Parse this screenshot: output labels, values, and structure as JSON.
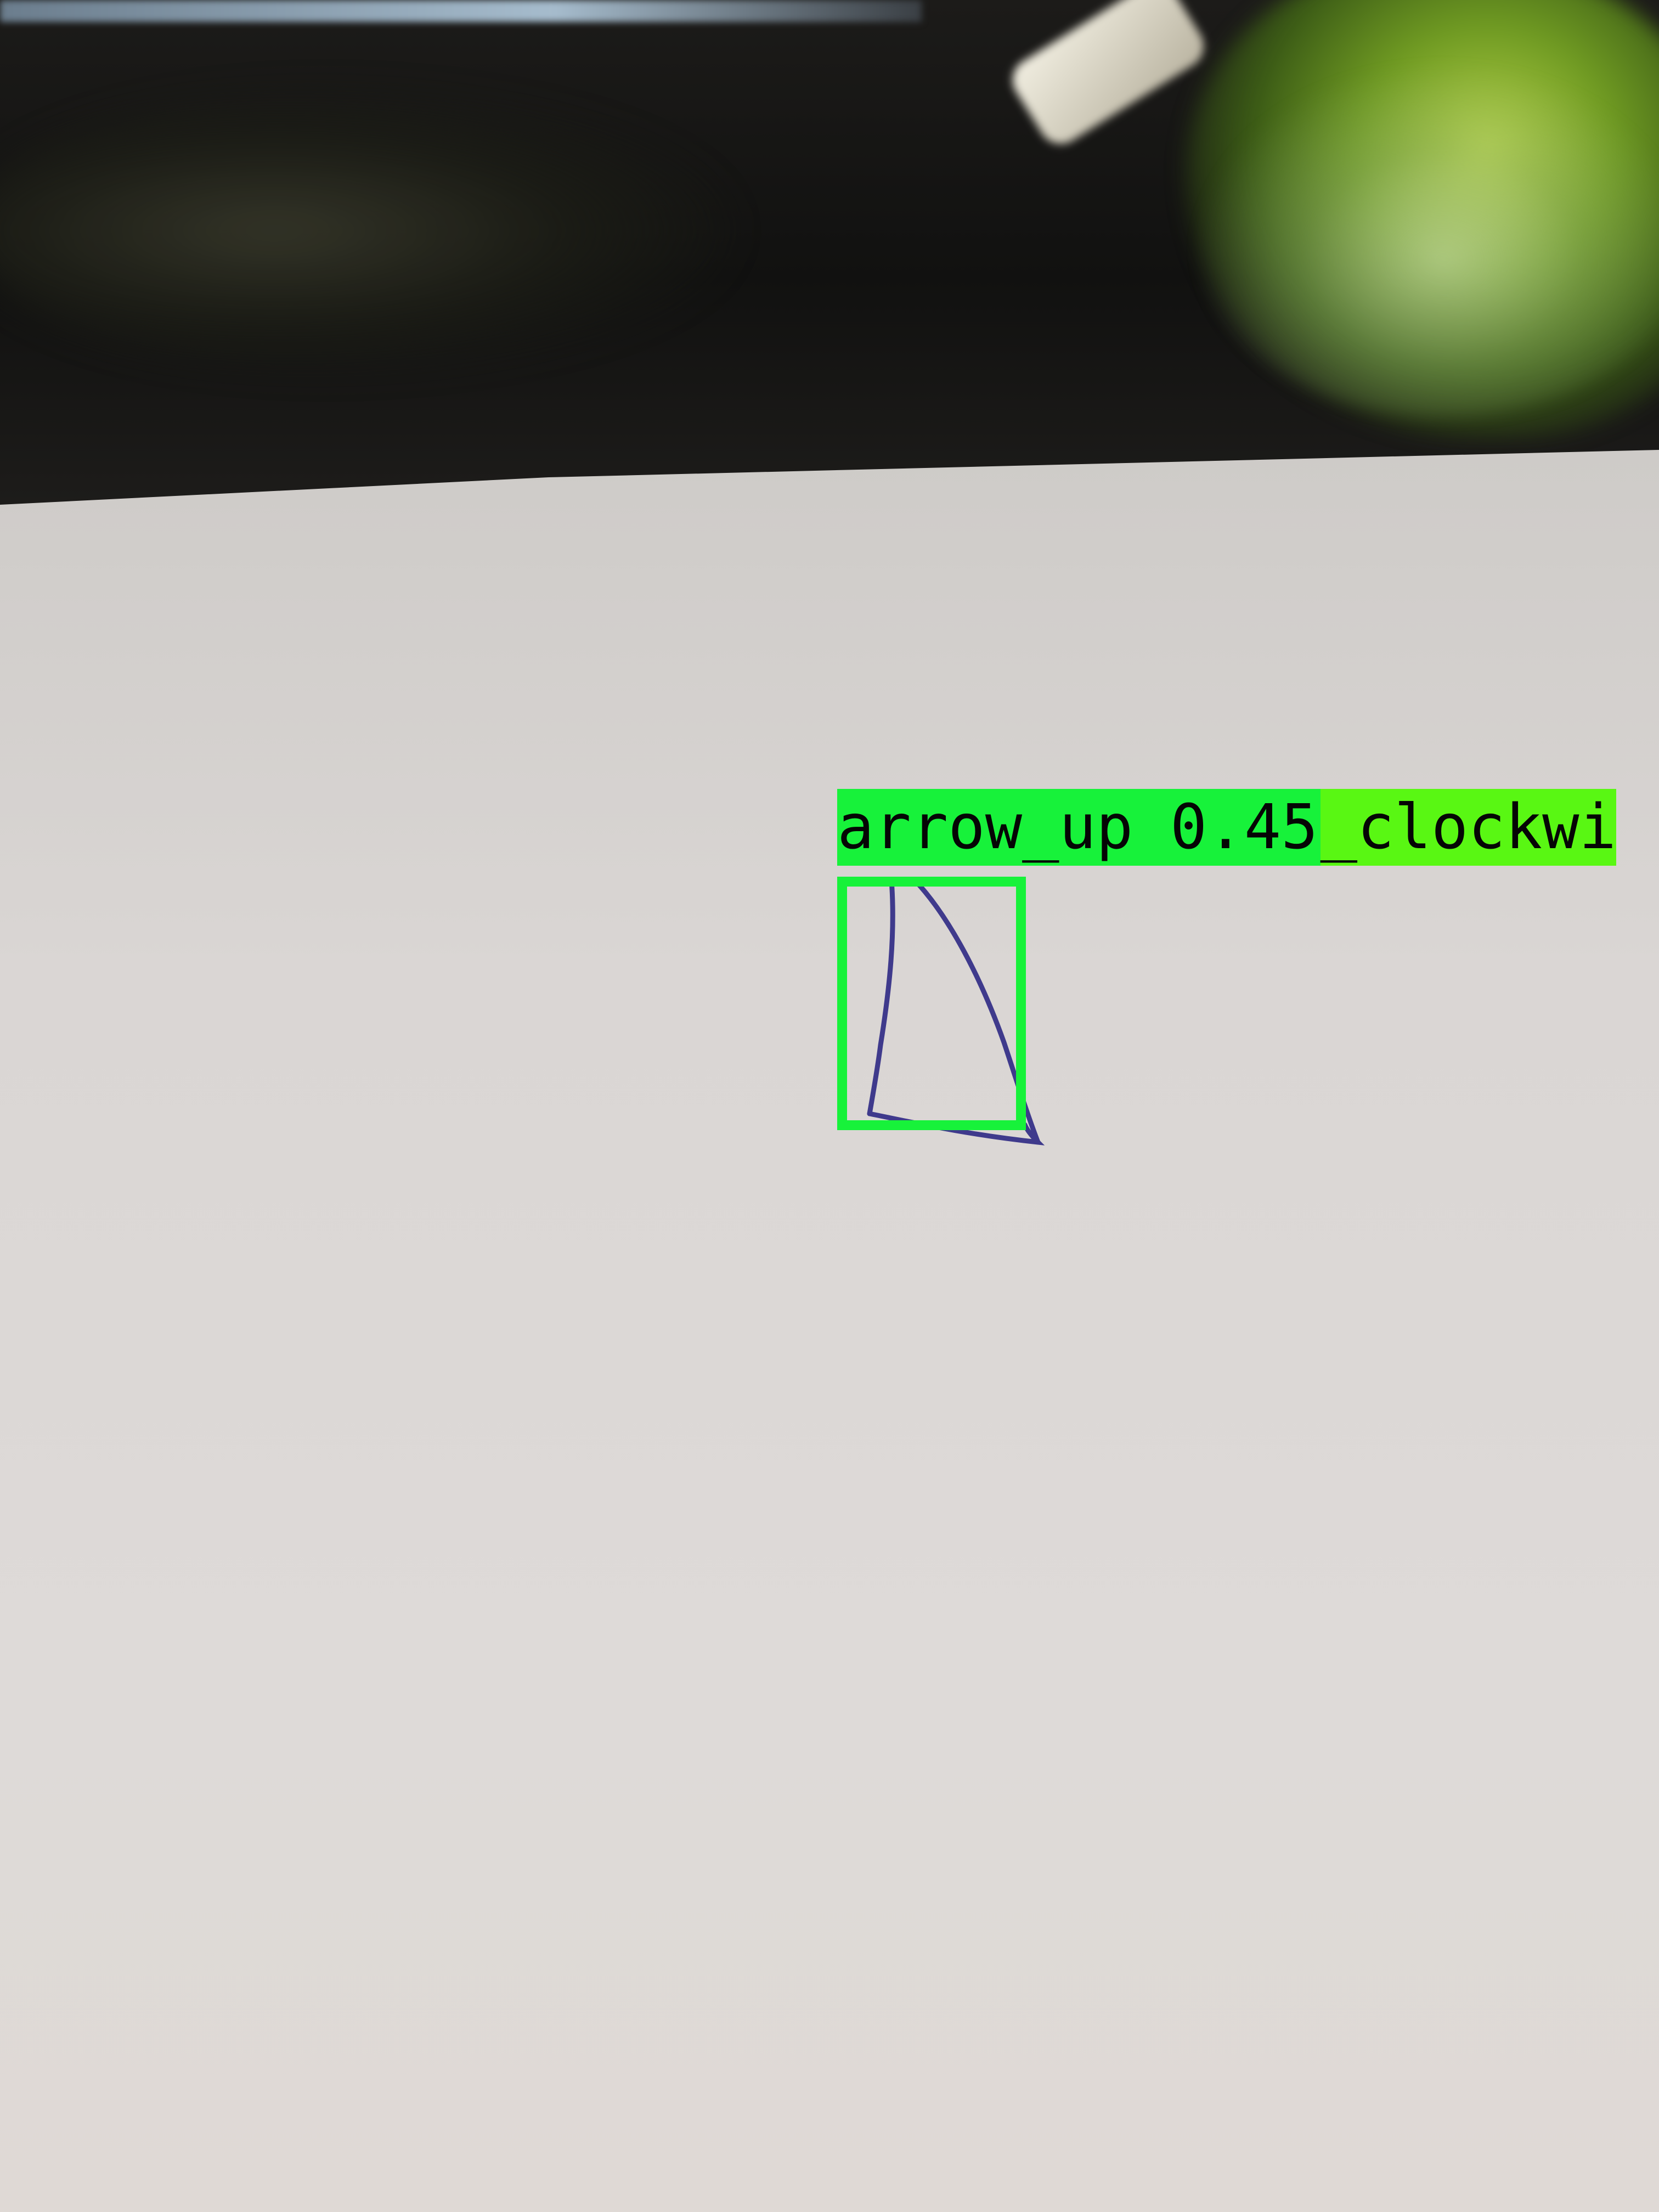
{
  "detections": [
    {
      "label": "arrow_up 0.45",
      "color": "#17f23a"
    },
    {
      "label": "_clockwi",
      "color": "#59f713"
    }
  ],
  "colors": {
    "paper": "#dcd8d6",
    "ink": "#3f3a8c",
    "background": "#141412"
  }
}
